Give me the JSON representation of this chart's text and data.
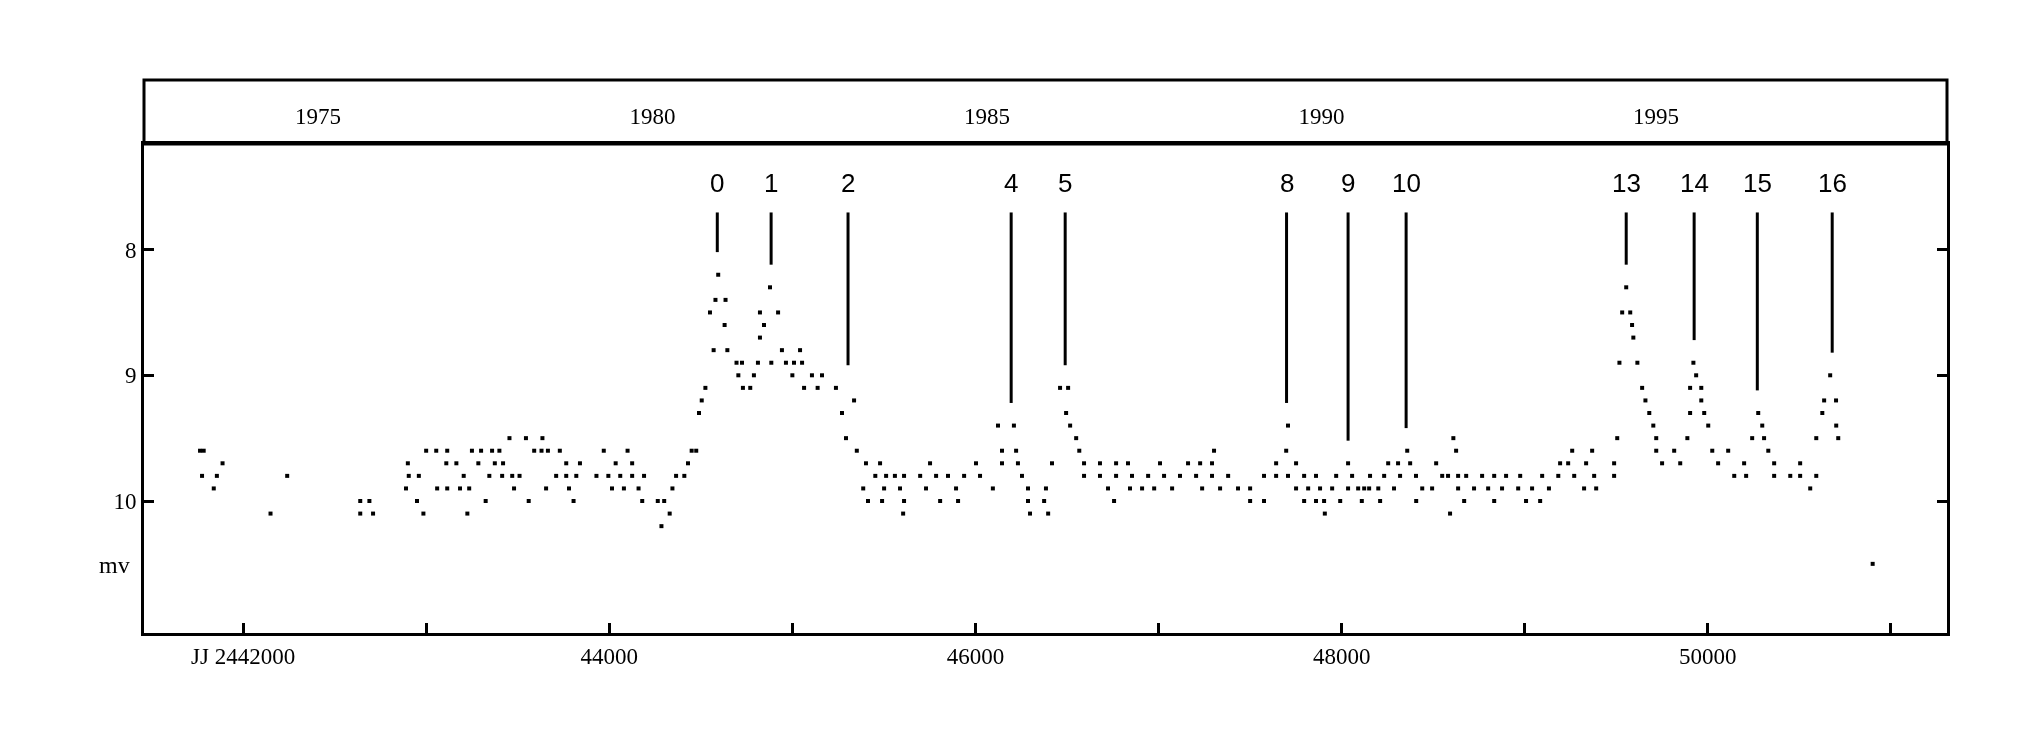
{
  "chart_data": {
    "type": "scatter",
    "ylabel": "mv",
    "marker": "square",
    "xlim": [
      41459,
      51306
    ],
    "ylim": [
      11.05,
      7.16
    ],
    "xticks": [
      {
        "value": 42000,
        "label": "JJ 2442000"
      },
      {
        "value": 43000,
        "label": null
      },
      44000,
      {
        "value": 45000,
        "label": null
      },
      46000,
      {
        "value": 47000,
        "label": null
      },
      48000,
      {
        "value": 49000,
        "label": null
      },
      50000,
      {
        "value": 51000,
        "label": null
      }
    ],
    "yticks": [
      8,
      9,
      10
    ],
    "x2lim": [
      1972.4,
      1999.35
    ],
    "x2ticks": [
      1975,
      1980,
      1985,
      1990,
      1995
    ],
    "ref_lines": [
      {
        "axis": "x",
        "value": 44590
      },
      {
        "axis": "x",
        "value": 44884
      },
      {
        "axis": "x",
        "value": 45304
      },
      {
        "axis": "x",
        "value": 46195
      },
      {
        "axis": "x",
        "value": 46490
      },
      {
        "axis": "x",
        "value": 47699
      },
      {
        "axis": "x",
        "value": 48035
      },
      {
        "axis": "x",
        "value": 48352
      },
      {
        "axis": "x",
        "value": 49554
      },
      {
        "axis": "x",
        "value": 49925
      },
      {
        "axis": "x",
        "value": 50270
      },
      {
        "axis": "x",
        "value": 50679
      }
    ],
    "annotations": [
      "0",
      "1",
      "2",
      "4",
      "5",
      "8",
      "9",
      "10",
      "13",
      "14",
      "15",
      "16"
    ],
    "series": [
      {
        "color": "#000000",
        "x": [
          41765,
          41785,
          41776,
          41857,
          41888,
          41840,
          42241,
          42150,
          42640,
          42690,
          42640,
          42710,
          42900,
          42905,
          42960,
          42890,
          42950,
          42985,
          43000,
          43055,
          43115,
          43110,
          43165,
          43060,
          43115,
          43185,
          43235,
          43205,
          43225,
          43250,
          43300,
          43360,
          43400,
          43285,
          43375,
          43420,
          43345,
          43415,
          43470,
          43510,
          43325,
          43455,
          43545,
          43635,
          43480,
          43560,
          43590,
          43630,
          43665,
          43730,
          43655,
          43710,
          43765,
          43820,
          43765,
          43840,
          43780,
          43805,
          43930,
          43995,
          43970,
          44100,
          44035,
          44125,
          44015,
          44080,
          44060,
          44125,
          44190,
          44160,
          44180,
          44265,
          44300,
          44285,
          44330,
          44345,
          44365,
          44410,
          44430,
          44450,
          44475,
          44490,
          44505,
          44525,
          44550,
          44570,
          44580,
          44635,
          44595,
          44630,
          44645,
          44695,
          44725,
          44705,
          44790,
          44770,
          44730,
          44878,
          44823,
          44922,
          44845,
          44823,
          44812,
          44885,
          44943,
          45042,
          44965,
          45009,
          45053,
          45000,
          45107,
          45162,
          45064,
          45138,
          45238,
          45337,
          45271,
          45293,
          45352,
          45402,
          45479,
          45453,
          45512,
          45560,
          45610,
          45698,
          45785,
          45850,
          45938,
          46025,
          45387,
          45501,
          45588,
          45730,
          45894,
          45413,
          45490,
          45610,
          45807,
          45905,
          45605,
          45752,
          46003,
          46095,
          46123,
          46210,
          46145,
          46222,
          46145,
          46232,
          46254,
          46287,
          46385,
          46287,
          46375,
          46298,
          46397,
          46418,
          46462,
          46506,
          46495,
          46517,
          46550,
          46567,
          46593,
          46680,
          46768,
          46833,
          47008,
          47161,
          47227,
          47292,
          47303,
          46593,
          46680,
          46768,
          46855,
          46943,
          47030,
          47117,
          47205,
          47292,
          47380,
          46724,
          46844,
          46910,
          46976,
          47074,
          47238,
          47336,
          47434,
          47500,
          46757,
          47500,
          47576,
          47707,
          47697,
          47642,
          47751,
          47576,
          47642,
          47707,
          47795,
          47860,
          47970,
          48057,
          47751,
          47817,
          47882,
          47948,
          48035,
          48123,
          47795,
          47860,
          47904,
          47992,
          47908,
          48035,
          48090,
          48150,
          48200,
          48286,
          48110,
          48210,
          48407,
          48155,
          48232,
          48319,
          48406,
          48254,
          48308,
          48374,
          48358,
          48440,
          48494,
          48516,
          48549,
          48581,
          48610,
          48625,
          48636,
          48680,
          48767,
          48592,
          48636,
          48723,
          48800,
          48876,
          48964,
          49040,
          48669,
          48833,
          49007,
          49084,
          48833,
          48898,
          48975,
          49095,
          49183,
          49270,
          49379,
          49488,
          49132,
          49324,
          49390,
          49193,
          49237,
          49335,
          49488,
          49259,
          49368,
          49505,
          49554,
          49532,
          49576,
          49586,
          49593,
          49517,
          49615,
          49641,
          49659,
          49680,
          49702,
          49718,
          49718,
          49816,
          49750,
          49849,
          49888,
          49921,
          49936,
          49903,
          49964,
          49964,
          49903,
          49980,
          50002,
          50024,
          50111,
          50056,
          50198,
          50144,
          50209,
          50275,
          50297,
          50242,
          50307,
          50330,
          50362,
          50504,
          50362,
          50450,
          50504,
          50592,
          50559,
          50592,
          50712,
          50625,
          50635,
          50700,
          50668,
          50701,
          50900
        ],
        "values": [
          9.6,
          9.6,
          9.8,
          9.8,
          9.7,
          9.9,
          9.8,
          10.1,
          10.0,
          10.0,
          10.1,
          10.1,
          9.7,
          9.8,
          9.8,
          9.9,
          10.0,
          10.1,
          9.6,
          9.6,
          9.6,
          9.7,
          9.7,
          9.9,
          9.9,
          9.9,
          9.9,
          9.8,
          10.1,
          9.6,
          9.6,
          9.6,
          9.6,
          9.7,
          9.7,
          9.7,
          9.8,
          9.8,
          9.8,
          9.8,
          10.0,
          9.5,
          9.5,
          9.5,
          9.9,
          10.0,
          9.6,
          9.6,
          9.6,
          9.6,
          9.9,
          9.8,
          9.8,
          9.8,
          9.7,
          9.7,
          9.9,
          10.0,
          9.8,
          9.8,
          9.6,
          9.6,
          9.7,
          9.7,
          9.9,
          9.9,
          9.8,
          9.8,
          9.8,
          9.9,
          10.0,
          10.0,
          10.0,
          10.2,
          10.1,
          9.9,
          9.8,
          9.8,
          9.7,
          9.6,
          9.6,
          9.3,
          9.2,
          9.1,
          8.5,
          8.8,
          8.4,
          8.4,
          8.2,
          8.6,
          8.8,
          8.9,
          8.9,
          9.0,
          9.0,
          9.1,
          9.1,
          8.3,
          8.5,
          8.5,
          8.6,
          8.7,
          8.9,
          8.9,
          8.8,
          8.8,
          8.9,
          8.9,
          8.9,
          9.0,
          9.0,
          9.0,
          9.1,
          9.1,
          9.1,
          9.2,
          9.3,
          9.5,
          9.6,
          9.7,
          9.7,
          9.8,
          9.8,
          9.8,
          9.8,
          9.8,
          9.8,
          9.8,
          9.8,
          9.8,
          9.9,
          9.9,
          9.9,
          9.9,
          9.9,
          10.0,
          10.0,
          10.0,
          10.0,
          10.0,
          10.1,
          9.7,
          9.7,
          9.9,
          9.4,
          9.4,
          9.6,
          9.6,
          9.7,
          9.7,
          9.8,
          9.9,
          9.9,
          10.0,
          10.0,
          10.1,
          10.1,
          9.7,
          9.1,
          9.1,
          9.3,
          9.4,
          9.5,
          9.6,
          9.7,
          9.7,
          9.7,
          9.7,
          9.7,
          9.7,
          9.7,
          9.7,
          9.6,
          9.8,
          9.8,
          9.8,
          9.8,
          9.8,
          9.8,
          9.8,
          9.8,
          9.8,
          9.8,
          9.9,
          9.9,
          9.9,
          9.9,
          9.9,
          9.9,
          9.9,
          9.9,
          9.9,
          10.0,
          10.0,
          10.0,
          9.4,
          9.6,
          9.7,
          9.7,
          9.8,
          9.8,
          9.8,
          9.8,
          9.8,
          9.8,
          9.8,
          9.9,
          9.9,
          9.9,
          9.9,
          9.9,
          9.9,
          10.0,
          10.0,
          10.0,
          10.0,
          10.1,
          9.7,
          9.9,
          9.9,
          9.9,
          9.9,
          10.0,
          10.0,
          10.0,
          9.8,
          9.8,
          9.8,
          9.8,
          9.7,
          9.7,
          9.7,
          9.6,
          9.9,
          9.9,
          9.7,
          9.8,
          9.8,
          9.5,
          9.6,
          9.8,
          9.8,
          9.8,
          10.1,
          9.9,
          9.9,
          9.9,
          9.9,
          9.9,
          9.9,
          10.0,
          10.0,
          10.0,
          10.0,
          9.8,
          9.8,
          9.8,
          9.8,
          9.8,
          9.8,
          9.8,
          9.8,
          9.9,
          9.9,
          9.9,
          9.7,
          9.7,
          9.7,
          9.7,
          9.6,
          9.6,
          9.5,
          8.3,
          8.5,
          8.5,
          8.6,
          8.7,
          8.9,
          8.9,
          9.1,
          9.2,
          9.3,
          9.4,
          9.5,
          9.6,
          9.6,
          9.7,
          9.7,
          9.5,
          8.9,
          9.0,
          9.1,
          9.1,
          9.2,
          9.3,
          9.3,
          9.4,
          9.6,
          9.6,
          9.7,
          9.7,
          9.8,
          9.8,
          9.3,
          9.4,
          9.5,
          9.5,
          9.6,
          9.7,
          9.7,
          9.8,
          9.8,
          9.8,
          9.8,
          9.9,
          9.5,
          9.5,
          9.3,
          9.2,
          9.2,
          9.0,
          9.4,
          10.5
        ]
      }
    ]
  }
}
